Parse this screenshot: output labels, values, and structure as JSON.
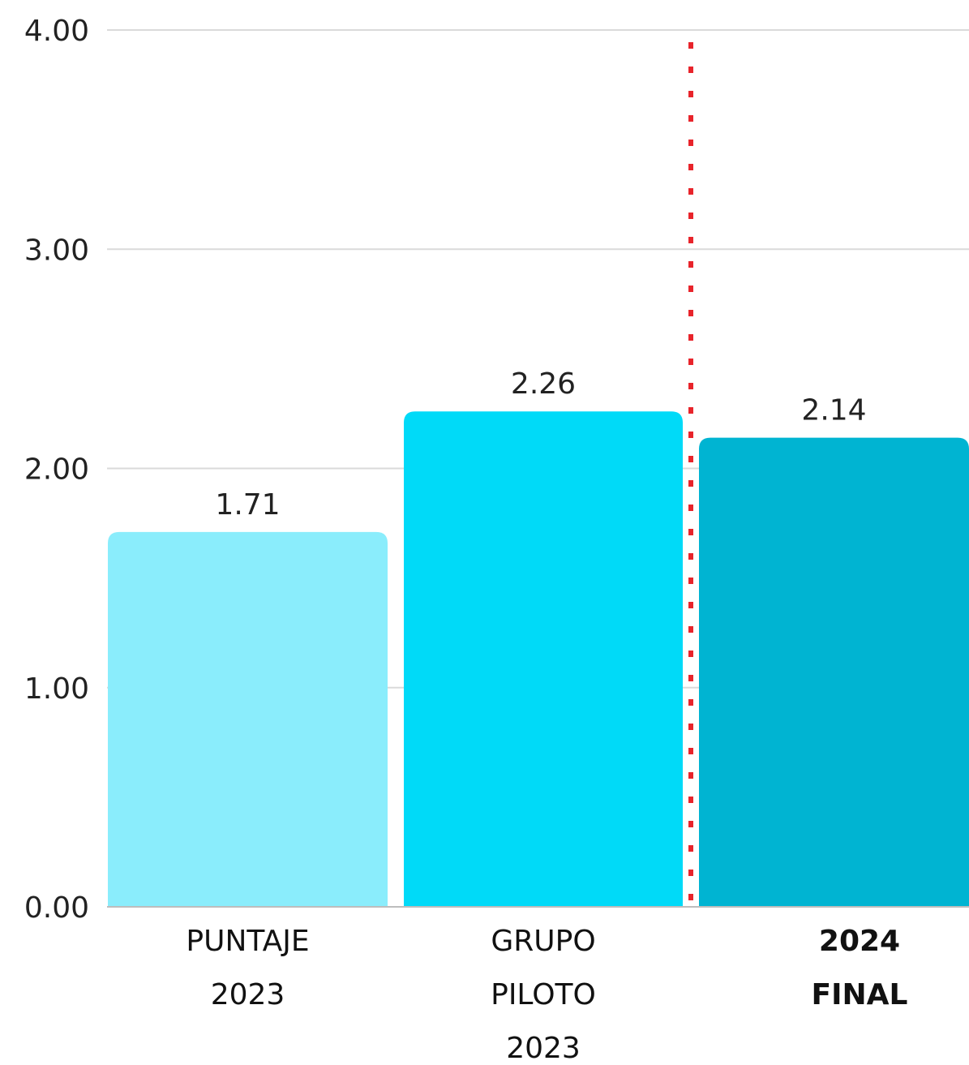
{
  "chart_data": {
    "type": "bar",
    "categories": [
      {
        "lines": [
          "PUNTAJE",
          "2023"
        ],
        "bold": false
      },
      {
        "lines": [
          "GRUPO",
          "PILOTO",
          "2023"
        ],
        "bold": false
      },
      {
        "lines": [
          "2024",
          "FINAL"
        ],
        "bold": true
      }
    ],
    "values": [
      1.71,
      2.26,
      2.14
    ],
    "value_labels": [
      "1.71",
      "2.26",
      "2.14"
    ],
    "bar_colors": [
      "#8AEDFC",
      "#00DAF8",
      "#00B4D2"
    ],
    "ylim": [
      0,
      4
    ],
    "yticks": [
      0,
      1,
      2,
      3,
      4
    ],
    "ytick_labels": [
      "0.00",
      "1.00",
      "2.00",
      "3.00",
      "4.00"
    ],
    "grid": true,
    "divider": {
      "between": [
        1,
        2
      ],
      "style": "dotted",
      "color": "#E8242B"
    }
  }
}
